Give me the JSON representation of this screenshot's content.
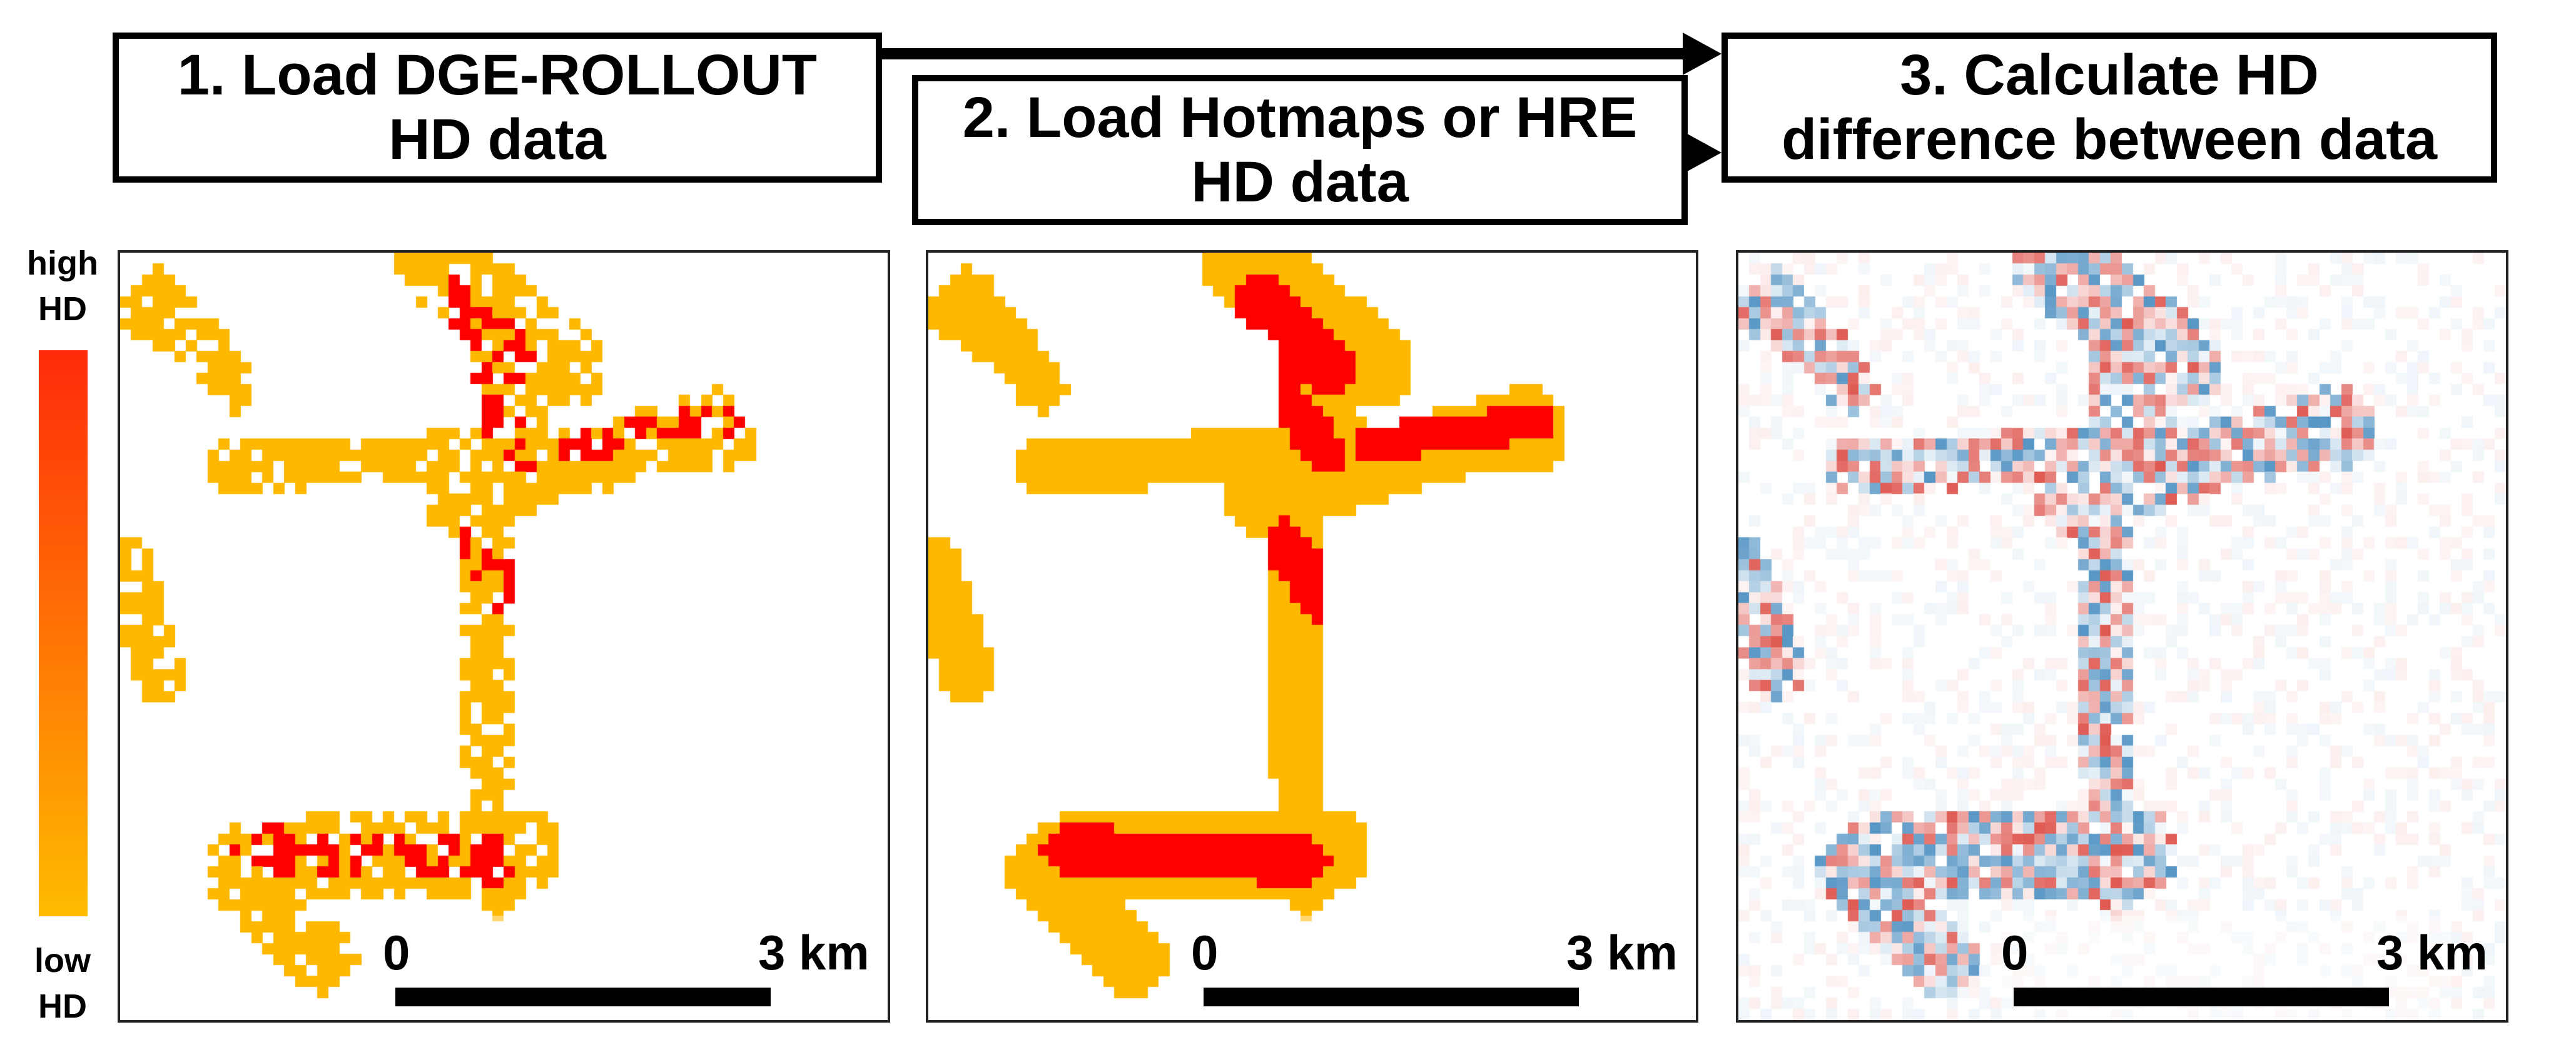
{
  "steps": [
    {
      "label": "1. Load DGE-ROLLOUT\nHD data"
    },
    {
      "label": "2. Load Hotmaps or HRE\nHD data"
    },
    {
      "label": "3. Calculate HD\ndifference between data"
    }
  ],
  "legend_left": {
    "high": "high\nHD",
    "low": "low\nHD",
    "top_color": "#ff2a0a",
    "bottom_color": "#ffbc00"
  },
  "legend_right": {
    "plus": "⊕",
    "minus": "⊖",
    "top_color": "#c0122a",
    "mid_color": "#f4f4f4",
    "bottom_color": "#1769aa"
  },
  "scalebar": {
    "start": "0",
    "end": "3 km"
  },
  "colors": {
    "high": "#ff0000",
    "low": "#ffb800",
    "pos": "#d73027",
    "neg": "#2c7bb6"
  }
}
